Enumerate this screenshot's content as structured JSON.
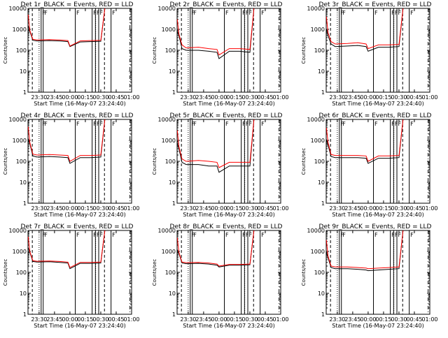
{
  "figure": {
    "background": "#ffffff",
    "axis_color": "#000000",
    "events_color": "#000000",
    "lld_color": "#ff0000",
    "xlabel": "Start Time (16-May-07 23:24:40)",
    "ylabel": "Counts/sec",
    "x_tick_labels": [
      "23:30",
      "23:45",
      "00:00",
      "00:15",
      "00:30",
      "00:45",
      "01:00"
    ],
    "y_tick_labels": [
      "1",
      "10",
      "100",
      "1000",
      "10000"
    ]
  },
  "chart_data": [
    {
      "type": "line",
      "title": "Det 1r_BLACK = Events, RED = LLD",
      "xlabel": "Start Time (16-May-07 23:24:40)",
      "ylabel": "Counts/sec",
      "xlim": [
        -5.4,
        45
      ],
      "ylim": [
        1,
        10000
      ],
      "y_scale": "log",
      "x_tick_labels": [
        "23:30",
        "23:45",
        "00:00",
        "00:15",
        "00:30",
        "00:45",
        "01:00"
      ],
      "y_tick_labels": [
        "1",
        "10",
        "100",
        "1000",
        "10000"
      ],
      "labels": [
        "F",
        "F",
        "F",
        "F",
        "F",
        "F",
        "F"
      ],
      "marker_times": [
        0.5,
        1.0,
        8.8,
        12.9,
        13.7,
        14.5,
        17.5
      ],
      "series": [
        {
          "name": "Events",
          "color": "#000000",
          "x": [
            -5.3,
            -4.5,
            -3,
            -1,
            5,
            10,
            14,
            15,
            20,
            25,
            30,
            32
          ],
          "y": [
            1500,
            800,
            300,
            280,
            290,
            280,
            260,
            150,
            250,
            260,
            270,
            15000
          ]
        },
        {
          "name": "LLD",
          "color": "#ff0000",
          "x": [
            -5.3,
            -4.5,
            -3,
            -1,
            5,
            10,
            14,
            15,
            20,
            25,
            30,
            32
          ],
          "y": [
            5000,
            900,
            330,
            310,
            320,
            310,
            290,
            160,
            280,
            290,
            300,
            16000
          ]
        }
      ]
    },
    {
      "type": "line",
      "title": "Det 2r_BLACK = Events, RED = LLD",
      "xlabel": "Start Time (16-May-07 23:24:40)",
      "ylabel": "Counts/sec",
      "xlim": [
        -5.4,
        45
      ],
      "ylim": [
        1,
        10000
      ],
      "y_scale": "log",
      "x_tick_labels": [
        "23:30",
        "23:45",
        "00:00",
        "00:15",
        "00:30",
        "00:45",
        "01:00"
      ],
      "y_tick_labels": [
        "1",
        "10",
        "100",
        "1000",
        "10000"
      ],
      "labels": [
        "F",
        "F",
        "F",
        "F",
        "F",
        "F",
        "F"
      ],
      "marker_times": [
        0.5,
        1.0,
        8.8,
        12.9,
        13.7,
        14.5,
        17.5
      ],
      "series": [
        {
          "name": "Events",
          "color": "#000000",
          "x": [
            -5.3,
            -4.5,
            -3,
            -1,
            5,
            10,
            14,
            15,
            20,
            25,
            30,
            32
          ],
          "y": [
            800,
            500,
            120,
            100,
            100,
            90,
            80,
            40,
            90,
            90,
            80,
            15000
          ]
        },
        {
          "name": "LLD",
          "color": "#ff0000",
          "x": [
            -5.3,
            -4.5,
            -3,
            -1,
            5,
            10,
            14,
            15,
            20,
            25,
            30,
            32
          ],
          "y": [
            3000,
            600,
            180,
            130,
            140,
            120,
            110,
            60,
            120,
            120,
            110,
            16000
          ]
        }
      ]
    },
    {
      "type": "line",
      "title": "Det 3r_BLACK = Events, RED = LLD",
      "xlabel": "Start Time (16-May-07 23:24:40)",
      "ylabel": "Counts/sec",
      "xlim": [
        -5.4,
        45
      ],
      "ylim": [
        1,
        10000
      ],
      "y_scale": "log",
      "x_tick_labels": [
        "23:30",
        "23:45",
        "00:00",
        "00:15",
        "00:30",
        "00:45",
        "01:00"
      ],
      "y_tick_labels": [
        "1",
        "10",
        "100",
        "1000",
        "10000"
      ],
      "labels": [
        "F",
        "F",
        "F",
        "F",
        "F",
        "F",
        "F"
      ],
      "marker_times": [
        0.5,
        1.0,
        8.8,
        12.9,
        13.7,
        14.5,
        17.5
      ],
      "series": [
        {
          "name": "Events",
          "color": "#000000",
          "x": [
            -5.3,
            -4.5,
            -3,
            -1,
            5,
            10,
            14,
            15,
            20,
            25,
            30,
            32
          ],
          "y": [
            1000,
            500,
            200,
            150,
            160,
            170,
            150,
            90,
            140,
            140,
            150,
            15000
          ]
        },
        {
          "name": "LLD",
          "color": "#ff0000",
          "x": [
            -5.3,
            -4.5,
            -3,
            -1,
            5,
            10,
            14,
            15,
            20,
            25,
            30,
            32
          ],
          "y": [
            4000,
            700,
            260,
            200,
            210,
            230,
            200,
            120,
            180,
            180,
            190,
            16000
          ]
        }
      ]
    },
    {
      "type": "line",
      "title": "Det 4r_BLACK = Events, RED = LLD",
      "xlabel": "Start Time (16-May-07 23:24:40)",
      "ylabel": "Counts/sec",
      "xlim": [
        -5.4,
        45
      ],
      "ylim": [
        1,
        10000
      ],
      "y_scale": "log",
      "x_tick_labels": [
        "23:30",
        "23:45",
        "00:00",
        "00:15",
        "00:30",
        "00:45",
        "01:00"
      ],
      "y_tick_labels": [
        "1",
        "10",
        "100",
        "1000",
        "10000"
      ],
      "labels": [
        "F",
        "F",
        "F",
        "F",
        "F",
        "F",
        "F"
      ],
      "marker_times": [
        0.5,
        1.0,
        8.8,
        12.9,
        13.7,
        14.5,
        17.5
      ],
      "series": [
        {
          "name": "Events",
          "color": "#000000",
          "x": [
            -5.3,
            -4.5,
            -3,
            -1,
            5,
            10,
            14,
            15,
            20,
            25,
            30,
            32
          ],
          "y": [
            1200,
            700,
            180,
            160,
            170,
            160,
            150,
            80,
            150,
            150,
            160,
            15000
          ]
        },
        {
          "name": "LLD",
          "color": "#ff0000",
          "x": [
            -5.3,
            -4.5,
            -3,
            -1,
            5,
            10,
            14,
            15,
            20,
            25,
            30,
            32
          ],
          "y": [
            4500,
            800,
            220,
            200,
            210,
            200,
            190,
            100,
            190,
            190,
            200,
            16000
          ]
        }
      ]
    },
    {
      "type": "line",
      "title": "Det 5r_BLACK = Events, RED = LLD",
      "xlabel": "Start Time (16-May-07 23:24:40)",
      "ylabel": "Counts/sec",
      "xlim": [
        -5.4,
        45
      ],
      "ylim": [
        1,
        10000
      ],
      "y_scale": "log",
      "x_tick_labels": [
        "23:30",
        "23:45",
        "00:00",
        "00:15",
        "00:30",
        "00:45",
        "01:00"
      ],
      "y_tick_labels": [
        "1",
        "10",
        "100",
        "1000",
        "10000"
      ],
      "labels": [
        "F",
        "F",
        "F",
        "F",
        "F",
        "F",
        "F"
      ],
      "marker_times": [
        0.5,
        1.0,
        8.8,
        12.9,
        13.7,
        14.5,
        17.5
      ],
      "series": [
        {
          "name": "Events",
          "color": "#000000",
          "x": [
            -5.3,
            -4.5,
            -3,
            -1,
            5,
            10,
            14,
            15,
            20,
            25,
            30,
            32
          ],
          "y": [
            700,
            400,
            90,
            70,
            70,
            60,
            60,
            30,
            60,
            60,
            60,
            15000
          ]
        },
        {
          "name": "LLD",
          "color": "#ff0000",
          "x": [
            -5.3,
            -4.5,
            -3,
            -1,
            5,
            10,
            14,
            15,
            20,
            25,
            30,
            32
          ],
          "y": [
            3000,
            500,
            130,
            100,
            110,
            100,
            90,
            50,
            90,
            90,
            90,
            16000
          ]
        }
      ]
    },
    {
      "type": "line",
      "title": "Det 6r_BLACK = Events, RED = LLD",
      "xlabel": "Start Time (16-May-07 23:24:40)",
      "ylabel": "Counts/sec",
      "xlim": [
        -5.4,
        45
      ],
      "ylim": [
        1,
        10000
      ],
      "y_scale": "log",
      "x_tick_labels": [
        "23:30",
        "23:45",
        "00:00",
        "00:15",
        "00:30",
        "00:45",
        "01:00"
      ],
      "y_tick_labels": [
        "1",
        "10",
        "100",
        "1000",
        "10000"
      ],
      "labels": [
        "F",
        "F",
        "F",
        "F",
        "F",
        "F",
        "F"
      ],
      "marker_times": [
        0.5,
        1.0,
        8.8,
        12.9,
        13.7,
        14.5,
        17.5
      ],
      "series": [
        {
          "name": "Events",
          "color": "#000000",
          "x": [
            -5.3,
            -4.5,
            -3,
            -1,
            5,
            10,
            14,
            15,
            20,
            25,
            30,
            32
          ],
          "y": [
            1100,
            600,
            170,
            150,
            150,
            150,
            140,
            80,
            140,
            140,
            150,
            15000
          ]
        },
        {
          "name": "LLD",
          "color": "#ff0000",
          "x": [
            -5.3,
            -4.5,
            -3,
            -1,
            5,
            10,
            14,
            15,
            20,
            25,
            30,
            32
          ],
          "y": [
            4000,
            800,
            210,
            190,
            190,
            190,
            180,
            100,
            180,
            180,
            190,
            16000
          ]
        }
      ]
    },
    {
      "type": "line",
      "title": "Det 7r_BLACK = Events, RED = LLD",
      "xlabel": "Start Time (16-May-07 23:24:40)",
      "ylabel": "Counts/sec",
      "xlim": [
        -5.4,
        45
      ],
      "ylim": [
        1,
        10000
      ],
      "y_scale": "log",
      "x_tick_labels": [
        "23:30",
        "23:45",
        "00:00",
        "00:15",
        "00:30",
        "00:45",
        "01:00"
      ],
      "y_tick_labels": [
        "1",
        "10",
        "100",
        "1000",
        "10000"
      ],
      "labels": [
        "F",
        "F",
        "F",
        "F",
        "F",
        "F",
        "F"
      ],
      "marker_times": [
        0.5,
        1.0,
        8.8,
        12.9,
        13.7,
        14.5,
        17.5
      ],
      "series": [
        {
          "name": "Events",
          "color": "#000000",
          "x": [
            -5.3,
            -4.5,
            -3,
            -1,
            5,
            10,
            14,
            15,
            20,
            25,
            30,
            32
          ],
          "y": [
            1500,
            900,
            330,
            310,
            320,
            300,
            280,
            150,
            270,
            270,
            280,
            15000
          ]
        },
        {
          "name": "LLD",
          "color": "#ff0000",
          "x": [
            -5.3,
            -4.5,
            -3,
            -1,
            5,
            10,
            14,
            15,
            20,
            25,
            30,
            32
          ],
          "y": [
            5000,
            1000,
            360,
            340,
            350,
            330,
            310,
            170,
            300,
            300,
            310,
            16000
          ]
        }
      ]
    },
    {
      "type": "line",
      "title": "Det 8r_BLACK = Events, RED = LLD",
      "xlabel": "Start Time (16-May-07 23:24:40)",
      "ylabel": "Counts/sec",
      "xlim": [
        -5.4,
        45
      ],
      "ylim": [
        1,
        10000
      ],
      "y_scale": "log",
      "x_tick_labels": [
        "23:30",
        "23:45",
        "00:00",
        "00:15",
        "00:30",
        "00:45",
        "01:00"
      ],
      "y_tick_labels": [
        "1",
        "10",
        "100",
        "1000",
        "10000"
      ],
      "labels": [
        "F",
        "F",
        "F",
        "F",
        "F",
        "F",
        "F"
      ],
      "marker_times": [
        0.5,
        1.0,
        8.8,
        12.9,
        13.7,
        14.5,
        17.5
      ],
      "series": [
        {
          "name": "Events",
          "color": "#000000",
          "x": [
            -5.3,
            -4.5,
            -3,
            -1,
            5,
            10,
            14,
            15,
            20,
            25,
            30,
            32
          ],
          "y": [
            1200,
            800,
            280,
            260,
            270,
            250,
            220,
            180,
            220,
            220,
            230,
            15000
          ]
        },
        {
          "name": "LLD",
          "color": "#ff0000",
          "x": [
            -5.3,
            -4.5,
            -3,
            -1,
            5,
            10,
            14,
            15,
            20,
            25,
            30,
            32
          ],
          "y": [
            4500,
            900,
            310,
            290,
            300,
            280,
            250,
            200,
            240,
            240,
            250,
            16000
          ]
        }
      ]
    },
    {
      "type": "line",
      "title": "Det 9r_BLACK = Events, RED = LLD",
      "xlabel": "Start Time (16-May-07 23:24:40)",
      "ylabel": "Counts/sec",
      "xlim": [
        -5.4,
        45
      ],
      "ylim": [
        1,
        10000
      ],
      "y_scale": "log",
      "x_tick_labels": [
        "23:30",
        "23:45",
        "00:00",
        "00:15",
        "00:30",
        "00:45",
        "01:00"
      ],
      "y_tick_labels": [
        "1",
        "10",
        "100",
        "1000",
        "10000"
      ],
      "labels": [
        "F",
        "F",
        "F",
        "F",
        "F",
        "F",
        "F"
      ],
      "marker_times": [
        0.5,
        1.0,
        8.8,
        12.9,
        13.7,
        14.5,
        17.5
      ],
      "series": [
        {
          "name": "Events",
          "color": "#000000",
          "x": [
            -5.3,
            -4.5,
            -3,
            -1,
            5,
            10,
            14,
            15,
            20,
            25,
            30,
            32
          ],
          "y": [
            900,
            500,
            170,
            150,
            150,
            140,
            130,
            120,
            130,
            140,
            150,
            15000
          ]
        },
        {
          "name": "LLD",
          "color": "#ff0000",
          "x": [
            -5.3,
            -4.5,
            -3,
            -1,
            5,
            10,
            14,
            15,
            20,
            25,
            30,
            32
          ],
          "y": [
            3500,
            600,
            200,
            180,
            180,
            170,
            160,
            150,
            160,
            170,
            180,
            16000
          ]
        }
      ]
    }
  ]
}
